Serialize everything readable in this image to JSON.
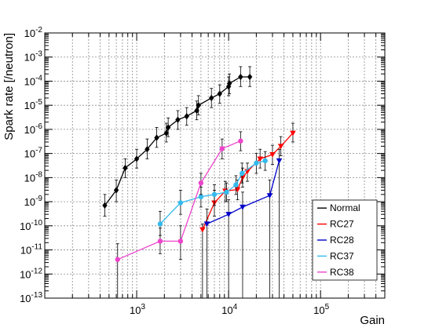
{
  "chart_data": {
    "type": "scatter",
    "xlabel": "Gain",
    "ylabel": "Spark rate [/neutron]",
    "xscale": "log",
    "yscale": "log",
    "xlim": [
      100,
      500000
    ],
    "ylim": [
      1e-13,
      0.01
    ],
    "grid": true,
    "legend_position": "bottom-right",
    "x_tick_labels": [
      {
        "value": 1000,
        "base": "10",
        "exp": "3"
      },
      {
        "value": 10000,
        "base": "10",
        "exp": "4"
      },
      {
        "value": 100000,
        "base": "10",
        "exp": "5"
      }
    ],
    "y_tick_labels": [
      {
        "value": 0.01,
        "base": "10",
        "exp": "-2"
      },
      {
        "value": 0.001,
        "base": "10",
        "exp": "-3"
      },
      {
        "value": 0.0001,
        "base": "10",
        "exp": "-4"
      },
      {
        "value": 1e-05,
        "base": "10",
        "exp": "-5"
      },
      {
        "value": 1e-06,
        "base": "10",
        "exp": "-6"
      },
      {
        "value": 1e-07,
        "base": "10",
        "exp": "-7"
      },
      {
        "value": 1e-08,
        "base": "10",
        "exp": "-8"
      },
      {
        "value": 1e-09,
        "base": "10",
        "exp": "-9"
      },
      {
        "value": 1e-10,
        "base": "10",
        "exp": "-10"
      },
      {
        "value": 1e-11,
        "base": "10",
        "exp": "-11"
      },
      {
        "value": 1e-12,
        "base": "10",
        "exp": "-12"
      },
      {
        "value": 1e-13,
        "base": "10",
        "exp": "-13"
      }
    ],
    "series": [
      {
        "name": "Normal",
        "color": "#000000",
        "marker": "diamond",
        "points": [
          {
            "x": 450,
            "y": 7e-10,
            "ylo": 2.5e-10,
            "yhi": 2e-09
          },
          {
            "x": 600,
            "y": 3e-09,
            "ylo": 1e-09,
            "yhi": 8e-09
          },
          {
            "x": 750,
            "y": 2.5e-08,
            "ylo": 1e-08,
            "yhi": 6e-08
          },
          {
            "x": 1000,
            "y": 6e-08,
            "ylo": 2.5e-08,
            "yhi": 1.5e-07
          },
          {
            "x": 1300,
            "y": 1.5e-07,
            "ylo": 6e-08,
            "yhi": 4e-07
          },
          {
            "x": 1650,
            "y": 4.5e-07,
            "ylo": 1.8e-07,
            "yhi": 1.2e-06
          },
          {
            "x": 2100,
            "y": 7e-07,
            "ylo": 3e-07,
            "yhi": 1.8e-06
          },
          {
            "x": 2200,
            "y": 1.2e-06,
            "ylo": 5e-07,
            "yhi": 3e-06
          },
          {
            "x": 2800,
            "y": 2.5e-06,
            "ylo": 1e-06,
            "yhi": 6e-06
          },
          {
            "x": 3500,
            "y": 3.5e-06,
            "ylo": 1.5e-06,
            "yhi": 8e-06
          },
          {
            "x": 4500,
            "y": 6e-06,
            "ylo": 2.5e-06,
            "yhi": 1.5e-05
          },
          {
            "x": 4700,
            "y": 1e-05,
            "ylo": 4e-06,
            "yhi": 2.5e-05
          },
          {
            "x": 6500,
            "y": 2e-05,
            "ylo": 8e-06,
            "yhi": 5e-05
          },
          {
            "x": 8000,
            "y": 3e-05,
            "ylo": 1.2e-05,
            "yhi": 7e-05
          },
          {
            "x": 10000,
            "y": 6e-05,
            "ylo": 2.5e-05,
            "yhi": 0.00015
          },
          {
            "x": 10200,
            "y": 8e-05,
            "ylo": 3e-05,
            "yhi": 0.0002
          },
          {
            "x": 13500,
            "y": 0.00015,
            "ylo": 6e-05,
            "yhi": 0.0004
          },
          {
            "x": 17000,
            "y": 0.00015,
            "ylo": 6e-05,
            "yhi": 0.0004
          }
        ]
      },
      {
        "name": "RC27",
        "color": "#ff0000",
        "marker": "triangle-down",
        "points": [
          {
            "x": 5200,
            "y": 7e-11,
            "ylo": 1e-13,
            "yhi": 1.2e-10
          },
          {
            "x": 7000,
            "y": 9e-10,
            "ylo": 2.5e-10,
            "yhi": 3e-09
          },
          {
            "x": 9200,
            "y": 2.8e-09,
            "ylo": 1e-09,
            "yhi": 7e-09
          },
          {
            "x": 12500,
            "y": 3.2e-09,
            "ylo": 1.2e-09,
            "yhi": 8e-09
          },
          {
            "x": 14200,
            "y": 1e-08,
            "ylo": 4e-09,
            "yhi": 2.5e-08
          },
          {
            "x": 16000,
            "y": 1.8e-08,
            "ylo": 7e-09,
            "yhi": 4e-08
          },
          {
            "x": 22000,
            "y": 6e-08,
            "ylo": 2.5e-08,
            "yhi": 1.5e-07
          },
          {
            "x": 30000,
            "y": 9e-08,
            "ylo": 3.5e-08,
            "yhi": 2.2e-07
          },
          {
            "x": 37000,
            "y": 2e-07,
            "ylo": 8e-08,
            "yhi": 5e-07
          },
          {
            "x": 50000,
            "y": 7e-07,
            "ylo": 3e-07,
            "yhi": 1.8e-06
          }
        ]
      },
      {
        "name": "RC28",
        "color": "#0000cc",
        "marker": "triangle-down",
        "points": [
          {
            "x": 5800,
            "y": 1.2e-10,
            "ylo": 1e-13,
            "yhi": 5e-10
          },
          {
            "x": 10000,
            "y": 3e-10,
            "ylo": 1e-13,
            "yhi": 1.2e-09
          },
          {
            "x": 14200,
            "y": 6e-10,
            "ylo": 1e-13,
            "yhi": 2.5e-09
          },
          {
            "x": 28000,
            "y": 1.8e-09,
            "ylo": 1e-13,
            "yhi": 8e-09
          },
          {
            "x": 35500,
            "y": 5e-08,
            "ylo": 1e-13,
            "yhi": 1.5e-07
          }
        ]
      },
      {
        "name": "RC37",
        "color": "#33bbee",
        "marker": "circle",
        "points": [
          {
            "x": 1800,
            "y": 1.2e-10,
            "ylo": 4e-11,
            "yhi": 4e-10
          },
          {
            "x": 3000,
            "y": 9e-10,
            "ylo": 3e-10,
            "yhi": 3e-09
          },
          {
            "x": 5000,
            "y": 1.6e-09,
            "ylo": 6e-10,
            "yhi": 4e-09
          },
          {
            "x": 7000,
            "y": 2e-09,
            "ylo": 7e-10,
            "yhi": 5e-09
          },
          {
            "x": 9500,
            "y": 2.5e-09,
            "ylo": 1e-09,
            "yhi": 6e-09
          },
          {
            "x": 12000,
            "y": 5e-09,
            "ylo": 2e-09,
            "yhi": 1.2e-08
          },
          {
            "x": 14000,
            "y": 1.5e-08,
            "ylo": 6e-09,
            "yhi": 4e-08
          },
          {
            "x": 20000,
            "y": 4e-08,
            "ylo": 1.5e-08,
            "yhi": 1e-07
          },
          {
            "x": 25000,
            "y": 5e-08,
            "ylo": 2e-08,
            "yhi": 1.2e-07
          }
        ]
      },
      {
        "name": "RC38",
        "color": "#ee44cc",
        "marker": "circle",
        "points": [
          {
            "x": 620,
            "y": 4e-12,
            "ylo": 1e-13,
            "yhi": 1.8e-11
          },
          {
            "x": 1800,
            "y": 2.3e-11,
            "ylo": 7e-12,
            "yhi": 8e-11
          },
          {
            "x": 3000,
            "y": 2.3e-11,
            "ylo": 4e-12,
            "yhi": 1e-10
          },
          {
            "x": 5000,
            "y": 6e-09,
            "ylo": 2e-09,
            "yhi": 1.5e-08
          },
          {
            "x": 8500,
            "y": 1.6e-07,
            "ylo": 6e-08,
            "yhi": 4e-07
          },
          {
            "x": 13500,
            "y": 3.3e-07,
            "ylo": 1.3e-07,
            "yhi": 8e-07
          }
        ]
      }
    ]
  }
}
